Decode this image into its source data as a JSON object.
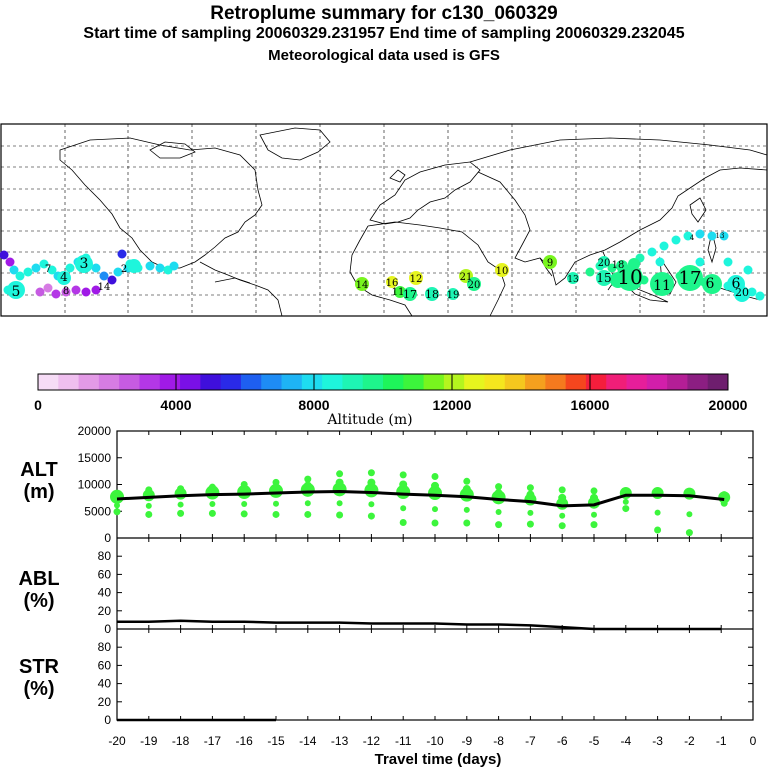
{
  "titles": {
    "line1": "Retroplume summary for c130_060329",
    "line2": "Start time of sampling 20060329.231957     End time of sampling 20060329.232045",
    "line3": "Meteorological data used is GFS"
  },
  "colorbar": {
    "tick_labels": [
      "0",
      "4000",
      "8000",
      "12000",
      "16000",
      "20000"
    ],
    "label": "Altitude (m)",
    "colors": [
      "#f6dcf6",
      "#efbfef",
      "#e39ae6",
      "#d67ce3",
      "#c65be2",
      "#b437e6",
      "#a01ae6",
      "#7a10e6",
      "#3f0fdc",
      "#2a2ae8",
      "#1e5ff0",
      "#1e8cf5",
      "#1eb4f5",
      "#1edcf0",
      "#1ef5dc",
      "#1ef5b4",
      "#1ef58c",
      "#1ef55a",
      "#3cf53c",
      "#78f51e",
      "#b4f51e",
      "#e6f51e",
      "#f5e61e",
      "#f5c81e",
      "#f5a01e",
      "#f57a1e",
      "#f5461e",
      "#f51e3c",
      "#f01e78",
      "#e61e9a",
      "#d21eaa",
      "#b41e96",
      "#8c1e82",
      "#6e1e6e"
    ]
  },
  "map": {
    "labels": [
      {
        "t": "5",
        "c": "#1ef5dc"
      },
      {
        "t": "4",
        "c": "#1ef5dc"
      },
      {
        "t": "3",
        "c": "#1ef5dc"
      },
      {
        "t": "7",
        "c": "#1e8cf5"
      },
      {
        "t": "8",
        "c": "#c65be2"
      },
      {
        "t": "14",
        "c": "#7a10e6"
      },
      {
        "t": "2",
        "c": "#1eb4f5"
      },
      {
        "t": "14",
        "c": "#78f51e"
      },
      {
        "t": "16",
        "c": "#e6f51e"
      },
      {
        "t": "11",
        "c": "#3cf53c"
      },
      {
        "t": "12",
        "c": "#e6f51e"
      },
      {
        "t": "17",
        "c": "#1ef58c"
      },
      {
        "t": "18",
        "c": "#1ef5b4"
      },
      {
        "t": "19",
        "c": "#1ef5b4"
      },
      {
        "t": "21",
        "c": "#b4f51e"
      },
      {
        "t": "20",
        "c": "#1ef58c"
      },
      {
        "t": "10",
        "c": "#e6f51e"
      },
      {
        "t": "9",
        "c": "#78f51e"
      },
      {
        "t": "13",
        "c": "#1ef5b4"
      },
      {
        "t": "20",
        "c": "#1ef5b4"
      },
      {
        "t": "15",
        "c": "#1ef58c"
      },
      {
        "t": "18",
        "c": "#1ef58c"
      },
      {
        "t": "10",
        "c": "#1ef58c"
      },
      {
        "t": "11",
        "c": "#1ef58c"
      },
      {
        "t": "17",
        "c": "#1ef58c"
      },
      {
        "t": "6",
        "c": "#1ef58c"
      },
      {
        "t": "6",
        "c": "#1ef5dc"
      },
      {
        "t": "20",
        "c": "#1ef5dc"
      },
      {
        "t": "13",
        "c": "#1ef5dc"
      },
      {
        "t": "4",
        "c": "#1ef5dc"
      }
    ]
  },
  "chart_data": [
    {
      "type": "scatter",
      "panel": "ALT",
      "ylabel_line1": "ALT",
      "ylabel_line2": "(m)",
      "ylim": [
        0,
        20000
      ],
      "yticks": [
        "0",
        "5000",
        "10000",
        "15000",
        "20000"
      ],
      "x": [
        -20,
        -19,
        -18,
        -17,
        -16,
        -15,
        -14,
        -13,
        -12,
        -11,
        -10,
        -9,
        -8,
        -7,
        -6,
        -5,
        -4,
        -3,
        -2,
        -1
      ],
      "mean_line": [
        7300,
        7600,
        7900,
        8100,
        8200,
        8400,
        8600,
        8700,
        8500,
        8200,
        8000,
        7700,
        7200,
        6800,
        6000,
        6200,
        8000,
        8000,
        7900,
        7200
      ],
      "upper_points": [
        8100,
        9000,
        9200,
        9500,
        10000,
        10400,
        11000,
        12000,
        12200,
        11800,
        11500,
        10600,
        9600,
        9400,
        9000,
        8800,
        8500,
        8400,
        8300,
        8100
      ],
      "lower_points": [
        4900,
        4400,
        4600,
        4600,
        4500,
        4400,
        4400,
        4300,
        4100,
        2900,
        2800,
        2800,
        2500,
        2600,
        2300,
        2500,
        5500,
        1500,
        1000,
        6500
      ],
      "point_color": "#3cf53c",
      "line_color": "#000000"
    },
    {
      "type": "line",
      "panel": "ABL",
      "ylabel_line1": "ABL",
      "ylabel_line2": "(%)",
      "ylim": [
        0,
        100
      ],
      "yticks": [
        "0",
        "20",
        "40",
        "60",
        "80"
      ],
      "x": [
        -20,
        -19,
        -18,
        -17,
        -16,
        -15,
        -14,
        -13,
        -12,
        -11,
        -10,
        -9,
        -8,
        -7,
        -6,
        -5,
        -4,
        -3,
        -2,
        -1
      ],
      "values": [
        8,
        8,
        9,
        8,
        8,
        7,
        7,
        7,
        6,
        6,
        6,
        5,
        5,
        4,
        2,
        0,
        0,
        0,
        0,
        0
      ]
    },
    {
      "type": "line",
      "panel": "STR",
      "ylabel_line1": "STR",
      "ylabel_line2": "(%)",
      "ylim": [
        0,
        100
      ],
      "yticks": [
        "0",
        "20",
        "40",
        "60",
        "80"
      ],
      "x": [
        -20,
        -19,
        -18,
        -17,
        -16,
        -15
      ],
      "values": [
        0,
        0,
        0,
        0,
        0,
        0
      ]
    }
  ],
  "xaxis": {
    "tick_labels": [
      "-20",
      "-19",
      "-18",
      "-17",
      "-16",
      "-15",
      "-14",
      "-13",
      "-12",
      "-11",
      "-10",
      "-9",
      "-8",
      "-7",
      "-6",
      "-5",
      "-4",
      "-3",
      "-2",
      "-1",
      "0"
    ],
    "label": "Travel time (days)"
  }
}
